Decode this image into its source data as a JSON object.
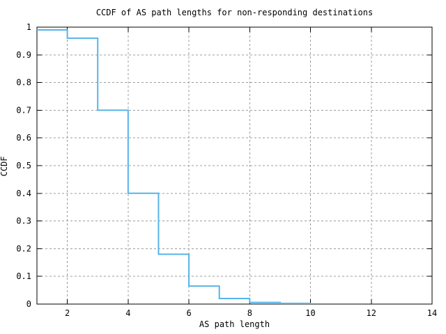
{
  "chart_data": {
    "type": "line",
    "subtype": "step-post",
    "title": "CCDF of AS path lengths for non-responding destinations",
    "xlabel": "AS path length",
    "ylabel": "CCDF",
    "xlim": [
      1,
      14
    ],
    "ylim": [
      0,
      1
    ],
    "grid": true,
    "legend_position": "none",
    "xticks": [
      {
        "v": 2,
        "label": "2"
      },
      {
        "v": 4,
        "label": "4"
      },
      {
        "v": 6,
        "label": "6"
      },
      {
        "v": 8,
        "label": "8"
      },
      {
        "v": 10,
        "label": "10"
      },
      {
        "v": 12,
        "label": "12"
      },
      {
        "v": 14,
        "label": "14"
      }
    ],
    "yticks": [
      {
        "v": 0,
        "label": "0"
      },
      {
        "v": 0.1,
        "label": "0.1"
      },
      {
        "v": 0.2,
        "label": "0.2"
      },
      {
        "v": 0.3,
        "label": "0.3"
      },
      {
        "v": 0.4,
        "label": "0.4"
      },
      {
        "v": 0.5,
        "label": "0.5"
      },
      {
        "v": 0.6,
        "label": "0.6"
      },
      {
        "v": 0.7,
        "label": "0.7"
      },
      {
        "v": 0.8,
        "label": "0.8"
      },
      {
        "v": 0.9,
        "label": "0.9"
      },
      {
        "v": 1,
        "label": "1"
      }
    ],
    "series": [
      {
        "name": "ccdf",
        "x": [
          1,
          2,
          3,
          4,
          5,
          6,
          7,
          8,
          9,
          10
        ],
        "y": [
          0.99,
          0.96,
          0.7,
          0.4,
          0.18,
          0.065,
          0.02,
          0.006,
          0.0025,
          0
        ]
      }
    ],
    "colors": {
      "line": "#56b4e9",
      "grid": "#9c9c9c",
      "axis": "#000000",
      "background": "#ffffff",
      "text": "#000000"
    }
  }
}
